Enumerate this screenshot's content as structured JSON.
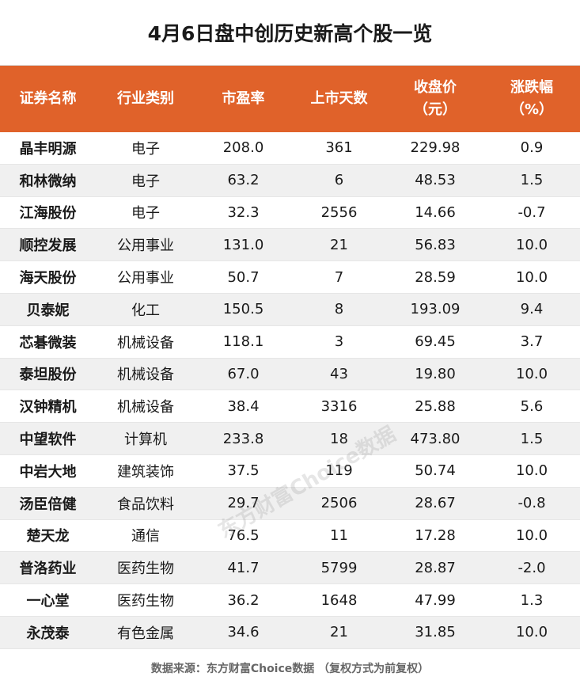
{
  "title": "4月6日盘中创历史新高个股一览",
  "headers": {
    "name": "证券名称",
    "industry": "行业类别",
    "pe": "市盈率",
    "days": "上市天数",
    "close_line1": "收盘价",
    "close_line2": "（元）",
    "change_line1": "涨跌幅",
    "change_line2": "（%）"
  },
  "rows": [
    {
      "name": "晶丰明源",
      "industry": "电子",
      "pe": "208.0",
      "days": "361",
      "close": "229.98",
      "change": "0.9"
    },
    {
      "name": "和林微纳",
      "industry": "电子",
      "pe": "63.2",
      "days": "6",
      "close": "48.53",
      "change": "1.5"
    },
    {
      "name": "江海股份",
      "industry": "电子",
      "pe": "32.3",
      "days": "2556",
      "close": "14.66",
      "change": "-0.7"
    },
    {
      "name": "顺控发展",
      "industry": "公用事业",
      "pe": "131.0",
      "days": "21",
      "close": "56.83",
      "change": "10.0"
    },
    {
      "name": "海天股份",
      "industry": "公用事业",
      "pe": "50.7",
      "days": "7",
      "close": "28.59",
      "change": "10.0"
    },
    {
      "name": "贝泰妮",
      "industry": "化工",
      "pe": "150.5",
      "days": "8",
      "close": "193.09",
      "change": "9.4"
    },
    {
      "name": "芯碁微装",
      "industry": "机械设备",
      "pe": "118.1",
      "days": "3",
      "close": "69.45",
      "change": "3.7"
    },
    {
      "name": "泰坦股份",
      "industry": "机械设备",
      "pe": "67.0",
      "days": "43",
      "close": "19.80",
      "change": "10.0"
    },
    {
      "name": "汉钟精机",
      "industry": "机械设备",
      "pe": "38.4",
      "days": "3316",
      "close": "25.88",
      "change": "5.6"
    },
    {
      "name": "中望软件",
      "industry": "计算机",
      "pe": "233.8",
      "days": "18",
      "close": "473.80",
      "change": "1.5"
    },
    {
      "name": "中岩大地",
      "industry": "建筑装饰",
      "pe": "37.5",
      "days": "119",
      "close": "50.74",
      "change": "10.0"
    },
    {
      "name": "汤臣倍健",
      "industry": "食品饮料",
      "pe": "29.7",
      "days": "2506",
      "close": "28.67",
      "change": "-0.8"
    },
    {
      "name": "楚天龙",
      "industry": "通信",
      "pe": "76.5",
      "days": "11",
      "close": "17.28",
      "change": "10.0"
    },
    {
      "name": "普洛药业",
      "industry": "医药生物",
      "pe": "41.7",
      "days": "5799",
      "close": "28.87",
      "change": "-2.0"
    },
    {
      "name": "一心堂",
      "industry": "医药生物",
      "pe": "36.2",
      "days": "1648",
      "close": "47.99",
      "change": "1.3"
    },
    {
      "name": "永茂泰",
      "industry": "有色金属",
      "pe": "34.6",
      "days": "21",
      "close": "31.85",
      "change": "10.0"
    }
  ],
  "footer": "数据来源：东方财富Choice数据 （复权方式为前复权）",
  "watermark": "东方财富Choice数据",
  "colors": {
    "header_bg": "#e0622a",
    "stripe": "#f0f0f0"
  }
}
